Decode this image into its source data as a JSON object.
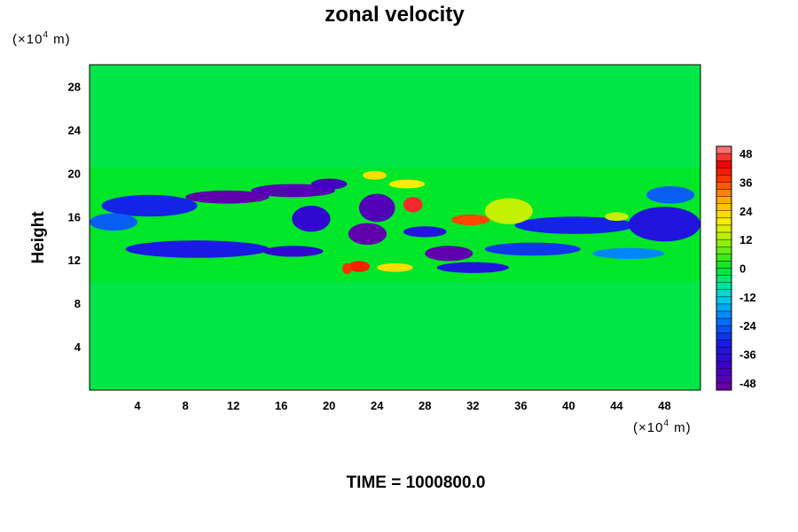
{
  "chart_data": {
    "type": "heatmap",
    "title": "zonal velocity",
    "ylabel": "Height",
    "xlabel": "",
    "x_unit": {
      "prefix": "(×10",
      "exp": "4",
      "suffix": " m)"
    },
    "y_unit": {
      "prefix": "(×10",
      "exp": "4",
      "suffix": " m)"
    },
    "xlim": [
      0,
      51
    ],
    "ylim": [
      0,
      30
    ],
    "x_ticks": [
      4,
      8,
      12,
      16,
      20,
      24,
      28,
      32,
      36,
      40,
      44,
      48
    ],
    "y_ticks": [
      4,
      8,
      12,
      16,
      20,
      24,
      28
    ],
    "colorbar": {
      "range": [
        -51,
        51
      ],
      "ticks": [
        48,
        36,
        24,
        12,
        0,
        -12,
        -24,
        -36,
        -48
      ],
      "n_levels": 34
    },
    "annotation": "TIME = 1000800.0",
    "features": [
      {
        "shape": "band",
        "x": [
          0,
          51
        ],
        "y": [
          10.0,
          20.5
        ],
        "value": 0
      },
      {
        "shape": "blob",
        "x": 5.0,
        "y": 17.0,
        "rx": 4.0,
        "ry": 1.0,
        "value": -30
      },
      {
        "shape": "blob",
        "x": 11.5,
        "y": 17.8,
        "rx": 3.5,
        "ry": 0.6,
        "value": -48
      },
      {
        "shape": "blob",
        "x": 17.0,
        "y": 18.4,
        "rx": 3.5,
        "ry": 0.6,
        "value": -46
      },
      {
        "shape": "blob",
        "x": 20.0,
        "y": 19.0,
        "rx": 1.5,
        "ry": 0.5,
        "value": -42
      },
      {
        "shape": "blob",
        "x": 9.0,
        "y": 13.0,
        "rx": 6.0,
        "ry": 0.8,
        "value": -32
      },
      {
        "shape": "blob",
        "x": 17.0,
        "y": 12.8,
        "rx": 2.5,
        "ry": 0.5,
        "value": -38
      },
      {
        "shape": "blob",
        "x": 2.0,
        "y": 15.5,
        "rx": 2.0,
        "ry": 0.8,
        "value": -24
      },
      {
        "shape": "blob",
        "x": 18.5,
        "y": 15.8,
        "rx": 1.6,
        "ry": 1.2,
        "value": -38
      },
      {
        "shape": "blob",
        "x": 24.0,
        "y": 16.8,
        "rx": 1.5,
        "ry": 1.3,
        "value": -45
      },
      {
        "shape": "blob",
        "x": 23.2,
        "y": 14.4,
        "rx": 1.6,
        "ry": 1.0,
        "value": -48
      },
      {
        "shape": "blob",
        "x": 30.0,
        "y": 12.6,
        "rx": 2.0,
        "ry": 0.7,
        "value": -48
      },
      {
        "shape": "blob",
        "x": 32.0,
        "y": 11.3,
        "rx": 3.0,
        "ry": 0.5,
        "value": -34
      },
      {
        "shape": "blob",
        "x": 28.0,
        "y": 14.6,
        "rx": 1.8,
        "ry": 0.5,
        "value": -34
      },
      {
        "shape": "blob",
        "x": 37.0,
        "y": 13.0,
        "rx": 4.0,
        "ry": 0.6,
        "value": -28
      },
      {
        "shape": "blob",
        "x": 40.5,
        "y": 15.2,
        "rx": 5.0,
        "ry": 0.8,
        "value": -30
      },
      {
        "shape": "blob",
        "x": 48.0,
        "y": 15.3,
        "rx": 3.0,
        "ry": 1.6,
        "value": -34
      },
      {
        "shape": "blob",
        "x": 48.5,
        "y": 18.0,
        "rx": 2.0,
        "ry": 0.8,
        "value": -24
      },
      {
        "shape": "blob",
        "x": 45.0,
        "y": 12.6,
        "rx": 3.0,
        "ry": 0.5,
        "value": -20
      },
      {
        "shape": "blob",
        "x": 27.0,
        "y": 17.1,
        "rx": 0.8,
        "ry": 0.7,
        "value": 46
      },
      {
        "shape": "blob",
        "x": 31.8,
        "y": 15.7,
        "rx": 1.6,
        "ry": 0.5,
        "value": 36
      },
      {
        "shape": "blob",
        "x": 22.5,
        "y": 11.4,
        "rx": 0.9,
        "ry": 0.5,
        "value": 40
      },
      {
        "shape": "blob",
        "x": 25.5,
        "y": 11.3,
        "rx": 1.5,
        "ry": 0.4,
        "value": 22
      },
      {
        "shape": "blob",
        "x": 35.0,
        "y": 16.5,
        "rx": 2.0,
        "ry": 1.2,
        "value": 14
      },
      {
        "shape": "blob",
        "x": 26.5,
        "y": 19.0,
        "rx": 1.5,
        "ry": 0.4,
        "value": 20
      },
      {
        "shape": "blob",
        "x": 21.5,
        "y": 11.2,
        "rx": 0.4,
        "ry": 0.5,
        "value": 38
      },
      {
        "shape": "blob",
        "x": 23.8,
        "y": 19.8,
        "rx": 1.0,
        "ry": 0.4,
        "value": 22
      },
      {
        "shape": "blob",
        "x": 44.0,
        "y": 16.0,
        "rx": 1.0,
        "ry": 0.4,
        "value": 14
      }
    ]
  }
}
